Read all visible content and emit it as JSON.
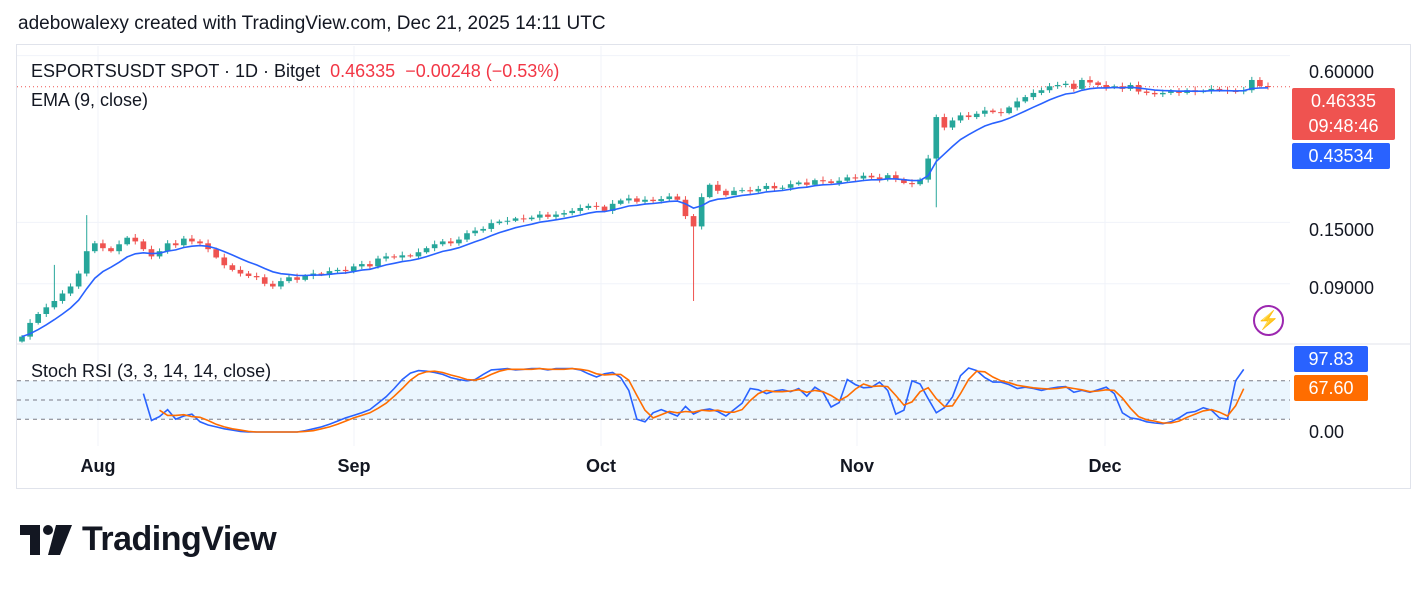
{
  "attribution": "adebowalexy created with TradingView.com, Dec 21, 2025 14:11 UTC",
  "legend": {
    "symbol": "ESPORTSUSDT SPOT · 1D · Bitget",
    "last": "0.46335",
    "change": "−0.00248 (−0.53%)",
    "ema": "EMA (9, close)",
    "stoch": "Stoch RSI (3, 3, 14, 14, close)"
  },
  "price_axis": [
    "0.60000",
    "0.15000",
    "0.09000"
  ],
  "stoch_axis": [
    "0.00"
  ],
  "tags": {
    "price": "0.46335",
    "countdown": "09:48:46",
    "ema": "0.43534",
    "k": "97.83",
    "d": "67.60"
  },
  "dates": [
    "Aug",
    "Sep",
    "Oct",
    "Nov",
    "Dec"
  ],
  "logo": "TradingView",
  "colors": {
    "up": "#26a69a",
    "down": "#ef5350",
    "ema": "#2962ff",
    "k": "#2962ff",
    "d": "#ff6d00",
    "band": "#e3f2fd"
  },
  "chart_data": [
    {
      "type": "candlestick",
      "title": "ESPORTSUSDT SPOT · 1D · Bitget",
      "scale": "log",
      "ylim": [
        0.055,
        0.65
      ],
      "x_range": [
        "Jul 22",
        "Dec 21"
      ],
      "close": [
        0.058,
        0.065,
        0.07,
        0.074,
        0.078,
        0.083,
        0.088,
        0.098,
        0.118,
        0.126,
        0.121,
        0.118,
        0.125,
        0.132,
        0.128,
        0.12,
        0.113,
        0.118,
        0.126,
        0.124,
        0.131,
        0.128,
        0.126,
        0.12,
        0.112,
        0.105,
        0.101,
        0.098,
        0.096,
        0.095,
        0.09,
        0.088,
        0.092,
        0.095,
        0.093,
        0.096,
        0.098,
        0.097,
        0.1,
        0.101,
        0.1,
        0.104,
        0.106,
        0.104,
        0.111,
        0.113,
        0.112,
        0.114,
        0.113,
        0.117,
        0.121,
        0.125,
        0.128,
        0.126,
        0.13,
        0.137,
        0.14,
        0.142,
        0.149,
        0.151,
        0.152,
        0.155,
        0.154,
        0.156,
        0.16,
        0.157,
        0.16,
        0.162,
        0.165,
        0.169,
        0.172,
        0.171,
        0.165,
        0.175,
        0.18,
        0.183,
        0.178,
        0.181,
        0.179,
        0.182,
        0.186,
        0.181,
        0.158,
        0.145,
        0.185,
        0.205,
        0.195,
        0.188,
        0.195,
        0.196,
        0.194,
        0.198,
        0.203,
        0.199,
        0.2,
        0.206,
        0.209,
        0.205,
        0.213,
        0.211,
        0.208,
        0.212,
        0.218,
        0.216,
        0.221,
        0.218,
        0.214,
        0.222,
        0.215,
        0.208,
        0.206,
        0.214,
        0.255,
        0.36,
        0.33,
        0.35,
        0.365,
        0.36,
        0.37,
        0.38,
        0.375,
        0.372,
        0.39,
        0.41,
        0.425,
        0.44,
        0.45,
        0.465,
        0.47,
        0.475,
        0.455,
        0.49,
        0.48,
        0.47,
        0.46,
        0.465,
        0.455,
        0.47,
        0.445,
        0.44,
        0.435,
        0.44,
        0.445,
        0.44,
        0.45,
        0.443,
        0.448,
        0.455,
        0.45,
        0.447,
        0.445,
        0.45,
        0.49,
        0.466,
        0.463
      ],
      "ema": [
        0.058,
        0.0594,
        0.0615,
        0.064,
        0.0668,
        0.07,
        0.0736,
        0.0785,
        0.0864,
        0.0943,
        0.0996,
        0.1033,
        0.1076,
        0.1125,
        0.1155,
        0.1164,
        0.1157,
        0.1161,
        0.1181,
        0.1193,
        0.1217,
        0.123,
        0.1236,
        0.1229,
        0.1207,
        0.1176,
        0.1143,
        0.111,
        0.1079,
        0.1053,
        0.1022,
        0.0994,
        0.0979,
        0.0973,
        0.0965,
        0.0964,
        0.0967,
        0.0967,
        0.0974,
        0.0981,
        0.0985,
        0.0996,
        0.1008,
        0.1015,
        0.1034,
        0.1053,
        0.1067,
        0.1082,
        0.1092,
        0.1108,
        0.1128,
        0.1153,
        0.1178,
        0.1194,
        0.1215,
        0.1246,
        0.1277,
        0.1306,
        0.1343,
        0.1377,
        0.1405,
        0.1435,
        0.1456,
        0.1477,
        0.1502,
        0.1515,
        0.1532,
        0.155,
        0.1569,
        0.1593,
        0.1618,
        0.1637,
        0.164,
        0.1662,
        0.1689,
        0.1718,
        0.1729,
        0.1745,
        0.1754,
        0.1768,
        0.1785,
        0.179,
        0.1748,
        0.1688,
        0.1721,
        0.1787,
        0.1819,
        0.1831,
        0.1855,
        0.1876,
        0.1889,
        0.1907,
        0.1932,
        0.1943,
        0.1955,
        0.1976,
        0.1999,
        0.2009,
        0.2034,
        0.2049,
        0.2055,
        0.2068,
        0.209,
        0.2104,
        0.2125,
        0.2136,
        0.2137,
        0.2154,
        0.2153,
        0.2139,
        0.2122,
        0.2126,
        0.2211,
        0.2489,
        0.2651,
        0.2821,
        0.2987,
        0.311,
        0.3228,
        0.3343,
        0.3419,
        0.3479,
        0.3563,
        0.3671,
        0.3787,
        0.3909,
        0.4027,
        0.4152,
        0.4262,
        0.436,
        0.4398,
        0.4498,
        0.4559,
        0.4587,
        0.4589,
        0.4602,
        0.4592,
        0.4613,
        0.4581,
        0.4545,
        0.4506,
        0.4485,
        0.4478,
        0.4462,
        0.4469,
        0.4462,
        0.4465,
        0.4482,
        0.4486,
        0.4482,
        0.4476,
        0.4481,
        0.4565,
        0.4584,
        0.4593
      ]
    },
    {
      "type": "line",
      "title": "Stoch RSI (3, 3, 14, 14, close)",
      "ylim": [
        0,
        100
      ],
      "levels": [
        20,
        50,
        80
      ],
      "series": [
        {
          "name": "K",
          "values": [
            null,
            null,
            null,
            null,
            null,
            null,
            null,
            null,
            null,
            null,
            null,
            null,
            null,
            null,
            null,
            60,
            18,
            24,
            35,
            20,
            25,
            28,
            16,
            11,
            8,
            5,
            3,
            1,
            0,
            0,
            0,
            0,
            0,
            0,
            0,
            2,
            5,
            8,
            12,
            17,
            22,
            26,
            30,
            35,
            45,
            55,
            68,
            82,
            92,
            96,
            95,
            93,
            90,
            85,
            82,
            80,
            82,
            90,
            97,
            98,
            99,
            97,
            98,
            99,
            99,
            97,
            99,
            99,
            99,
            97,
            91,
            86,
            91,
            93,
            85,
            65,
            20,
            16,
            30,
            35,
            30,
            25,
            40,
            28,
            34,
            36,
            32,
            25,
            35,
            45,
            68,
            66,
            60,
            64,
            66,
            63,
            68,
            56,
            70,
            62,
            39,
            46,
            82,
            74,
            69,
            70,
            78,
            65,
            28,
            34,
            80,
            75,
            52,
            30,
            38,
            55,
            88,
            102,
            96,
            85,
            78,
            78,
            74,
            68,
            70,
            68,
            65,
            68,
            70,
            71,
            62,
            65,
            62,
            66,
            70,
            60,
            30,
            22,
            20,
            16,
            14,
            13,
            16,
            22,
            30,
            32,
            38,
            34,
            22,
            20,
            80,
            97.83
          ]
        },
        {
          "name": "D",
          "values": [
            null,
            null,
            null,
            null,
            null,
            null,
            null,
            null,
            null,
            null,
            null,
            null,
            null,
            null,
            null,
            null,
            null,
            34,
            26,
            26,
            27,
            24,
            23,
            18,
            12,
            8,
            5,
            3,
            1,
            0,
            0,
            0,
            0,
            0,
            0,
            1,
            2,
            5,
            8,
            12,
            17,
            22,
            26,
            30,
            37,
            45,
            56,
            68,
            81,
            90,
            94,
            95,
            93,
            89,
            86,
            82,
            81,
            84,
            90,
            95,
            98,
            98,
            98,
            98,
            99,
            98,
            98,
            98,
            99,
            98,
            96,
            91,
            89,
            90,
            90,
            81,
            57,
            34,
            22,
            27,
            32,
            30,
            32,
            31,
            34,
            33,
            34,
            31,
            31,
            35,
            49,
            60,
            65,
            63,
            63,
            64,
            66,
            62,
            65,
            63,
            57,
            49,
            56,
            67,
            75,
            71,
            72,
            71,
            57,
            42,
            47,
            63,
            69,
            52,
            40,
            41,
            60,
            82,
            95,
            94,
            86,
            80,
            77,
            73,
            71,
            69,
            68,
            67,
            68,
            70,
            68,
            66,
            63,
            64,
            66,
            65,
            53,
            37,
            24,
            19,
            17,
            14,
            14,
            17,
            23,
            28,
            33,
            35,
            31,
            25,
            41,
            67.6
          ]
        }
      ]
    }
  ]
}
